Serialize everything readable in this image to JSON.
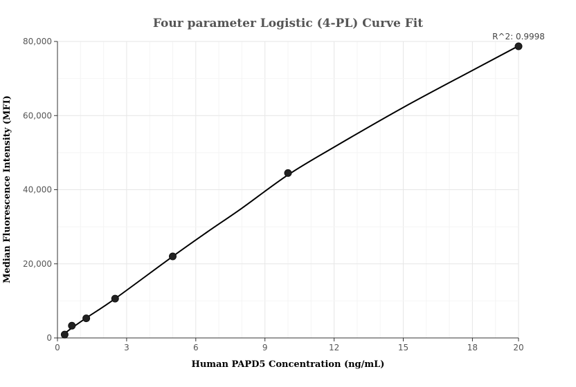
{
  "chart_data": {
    "type": "scatter",
    "title": "Four parameter Logistic (4-PL) Curve Fit",
    "xlabel": "Human PAPD5 Concentration (ng/mL)",
    "ylabel": "Median Fluorescence Intensity (MFI)",
    "xlim": [
      0,
      20
    ],
    "ylim": [
      0,
      80000
    ],
    "x_ticks": [
      0,
      3,
      6,
      9,
      12,
      15,
      18,
      20
    ],
    "x_tick_labels": [
      "0",
      "3",
      "6",
      "9",
      "12",
      "15",
      "18",
      "20"
    ],
    "y_ticks": [
      0,
      20000,
      40000,
      60000,
      80000
    ],
    "y_tick_labels": [
      "0",
      "20,000",
      "40,000",
      "60,000",
      "80,000"
    ],
    "grid": true,
    "series": [
      {
        "points": [
          {
            "x": 0.3125,
            "y": 900
          },
          {
            "x": 0.625,
            "y": 3300
          },
          {
            "x": 1.25,
            "y": 5300
          },
          {
            "x": 2.5,
            "y": 10600
          },
          {
            "x": 5,
            "y": 22000
          },
          {
            "x": 10,
            "y": 44500
          },
          {
            "x": 20,
            "y": 78700
          }
        ],
        "fit_curve": [
          {
            "x": 0.3125,
            "y": 1200
          },
          {
            "x": 0.625,
            "y": 2700
          },
          {
            "x": 1.25,
            "y": 5400
          },
          {
            "x": 2.5,
            "y": 10600
          },
          {
            "x": 5,
            "y": 22000
          },
          {
            "x": 6.5,
            "y": 28600
          },
          {
            "x": 8,
            "y": 35000
          },
          {
            "x": 10,
            "y": 44000
          },
          {
            "x": 12,
            "y": 51500
          },
          {
            "x": 15,
            "y": 62200
          },
          {
            "x": 18,
            "y": 72200
          },
          {
            "x": 20,
            "y": 78800
          }
        ],
        "point_color": "#222222",
        "line_color": "#000000"
      }
    ],
    "annotation": "R^2: 0.9998"
  }
}
